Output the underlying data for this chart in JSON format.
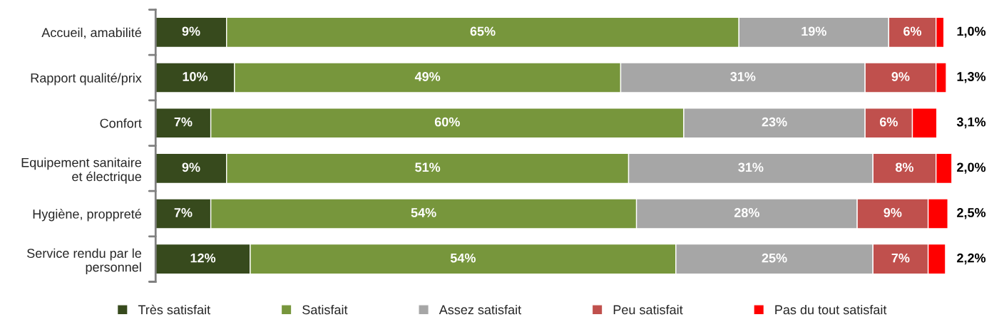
{
  "chart_data": {
    "type": "bar",
    "orientation": "horizontal",
    "stacked": true,
    "categories": [
      "Accueil, amabilité",
      "Rapport qualité/prix",
      "Confort",
      "Equipement sanitaire\net électrique",
      "Hygiène, proppreté",
      "Service rendu par le\npersonnel"
    ],
    "series": [
      {
        "name": "Très satisfait",
        "color": "#374a1d",
        "values": [
          9,
          10,
          7,
          9,
          7,
          12
        ],
        "value_labels": [
          "9%",
          "10%",
          "7%",
          "9%",
          "7%",
          "12%"
        ]
      },
      {
        "name": "Satisfait",
        "color": "#77963c",
        "values": [
          65,
          49,
          60,
          51,
          54,
          54
        ],
        "value_labels": [
          "65%",
          "49%",
          "60%",
          "51%",
          "54%",
          "54%"
        ]
      },
      {
        "name": "Assez satisfait",
        "color": "#a6a6a6",
        "values": [
          19,
          31,
          23,
          31,
          28,
          25
        ],
        "value_labels": [
          "19%",
          "31%",
          "23%",
          "31%",
          "28%",
          "25%"
        ]
      },
      {
        "name": "Peu satisfait",
        "color": "#c0504d",
        "values": [
          6,
          9,
          6,
          8,
          9,
          7
        ],
        "value_labels": [
          "6%",
          "9%",
          "6%",
          "8%",
          "9%",
          "7%"
        ]
      },
      {
        "name": "Pas du tout satisfait",
        "color": "#ff0000",
        "values": [
          1.0,
          1.3,
          3.1,
          2.0,
          2.5,
          2.2
        ],
        "value_labels": [
          "1,0%",
          "1,3%",
          "3,1%",
          "2,0%",
          "2,5%",
          "2,2%"
        ]
      }
    ],
    "xlim": [
      0,
      101
    ],
    "tick_labels": "y",
    "grid": false,
    "legend": "bottom"
  }
}
